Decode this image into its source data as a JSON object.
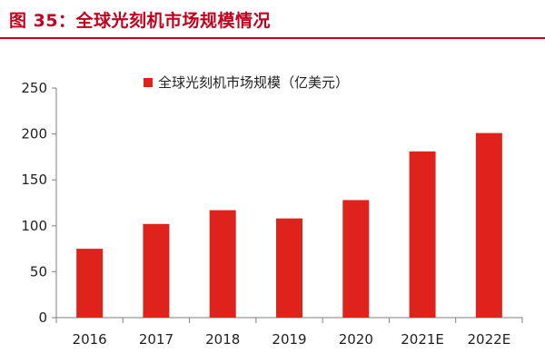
{
  "figure": {
    "title": "图 35：全球光刻机市场规模情况"
  },
  "colors": {
    "accent": "#c0001c",
    "bar": "#e0221c",
    "axis": "#7f7f7f"
  },
  "chart_data": {
    "type": "bar",
    "categories": [
      "2016",
      "2017",
      "2018",
      "2019",
      "2020",
      "2021E",
      "2022E"
    ],
    "series": [
      {
        "name": "全球光刻机市场规模（亿美元）",
        "values": [
          75,
          102,
          117,
          108,
          128,
          181,
          201
        ]
      }
    ],
    "ylim": [
      0,
      250
    ],
    "yticks": [
      "0",
      "50",
      "100",
      "150",
      "200",
      "250"
    ],
    "grid": false,
    "legend_position": "top"
  }
}
